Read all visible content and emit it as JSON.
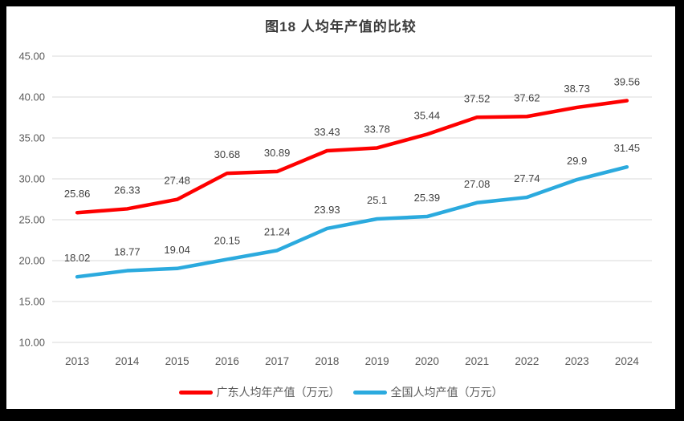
{
  "title": "图18 人均年产值的比较",
  "chart_data": {
    "type": "line",
    "categories": [
      "2013",
      "2014",
      "2015",
      "2016",
      "2017",
      "2018",
      "2019",
      "2020",
      "2021",
      "2022",
      "2023",
      "2024"
    ],
    "series": [
      {
        "name": "广东人均年产值（万元）",
        "color": "#fe0000",
        "values": [
          25.86,
          26.33,
          27.48,
          30.68,
          30.89,
          33.43,
          33.78,
          35.44,
          37.52,
          37.62,
          38.73,
          39.56
        ],
        "labels": [
          "25.86",
          "26.33",
          "27.48",
          "30.68",
          "30.89",
          "33.43",
          "33.78",
          "35.44",
          "37.52",
          "37.62",
          "38.73",
          "39.56"
        ]
      },
      {
        "name": "全国人均产值（万元）",
        "color": "#2baade",
        "values": [
          18.02,
          18.77,
          19.04,
          20.15,
          21.24,
          23.93,
          25.1,
          25.39,
          27.08,
          27.74,
          29.9,
          31.45
        ],
        "labels": [
          "18.02",
          "18.77",
          "19.04",
          "20.15",
          "21.24",
          "23.93",
          "25.1",
          "25.39",
          "27.08",
          "27.74",
          "29.9",
          "31.45"
        ]
      }
    ],
    "title": "图18 人均年产值的比较",
    "xlabel": "",
    "ylabel": "",
    "ylim": [
      10,
      45
    ],
    "y_tick_values": [
      45,
      40,
      35,
      30,
      25,
      20,
      15,
      10
    ],
    "y_tick_labels": [
      "45.00",
      "40.00",
      "35.00",
      "30.00",
      "25.00",
      "20.00",
      "15.00",
      "10.00"
    ],
    "grid": true,
    "legend_position": "bottom"
  },
  "style": {
    "frame_color": "#000000",
    "surface_color": "#ffffff",
    "gridline_color": "#d9d9d9",
    "tick_text_color": "#595959",
    "data_label_color": "#404040",
    "line_width": 4.5
  }
}
